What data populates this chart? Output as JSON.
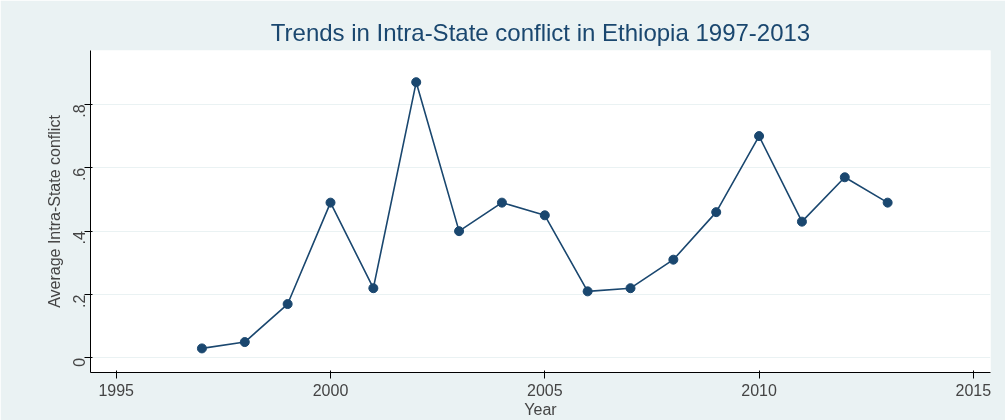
{
  "chart_data": {
    "type": "line",
    "title": "Trends in Intra-State conflict in Ethiopia 1997-2013",
    "xlabel": "Year",
    "ylabel": "Average Intra-State conflict",
    "x": [
      1997,
      1998,
      1999,
      2000,
      2001,
      2002,
      2003,
      2004,
      2005,
      2006,
      2007,
      2008,
      2009,
      2010,
      2011,
      2012,
      2013
    ],
    "series": [
      {
        "color": "#1a476f",
        "values": [
          0.03,
          0.05,
          0.17,
          0.49,
          0.22,
          0.87,
          0.4,
          0.49,
          0.45,
          0.21,
          0.22,
          0.31,
          0.46,
          0.7,
          0.43,
          0.57,
          0.49
        ]
      }
    ],
    "xlim": [
      1994.4,
      2015.4
    ],
    "xticks": [
      1995,
      2000,
      2005,
      2010,
      2015
    ],
    "ylim": [
      -0.046,
      0.97
    ],
    "yticks": [
      {
        "value": 0,
        "label": "0"
      },
      {
        "value": 0.2,
        "label": ".2"
      },
      {
        "value": 0.4,
        "label": ".4"
      },
      {
        "value": 0.6,
        "label": ".6"
      },
      {
        "value": 0.8,
        "label": ".8"
      }
    ],
    "grid": "y",
    "marker": "circle",
    "line_style": "solid"
  }
}
